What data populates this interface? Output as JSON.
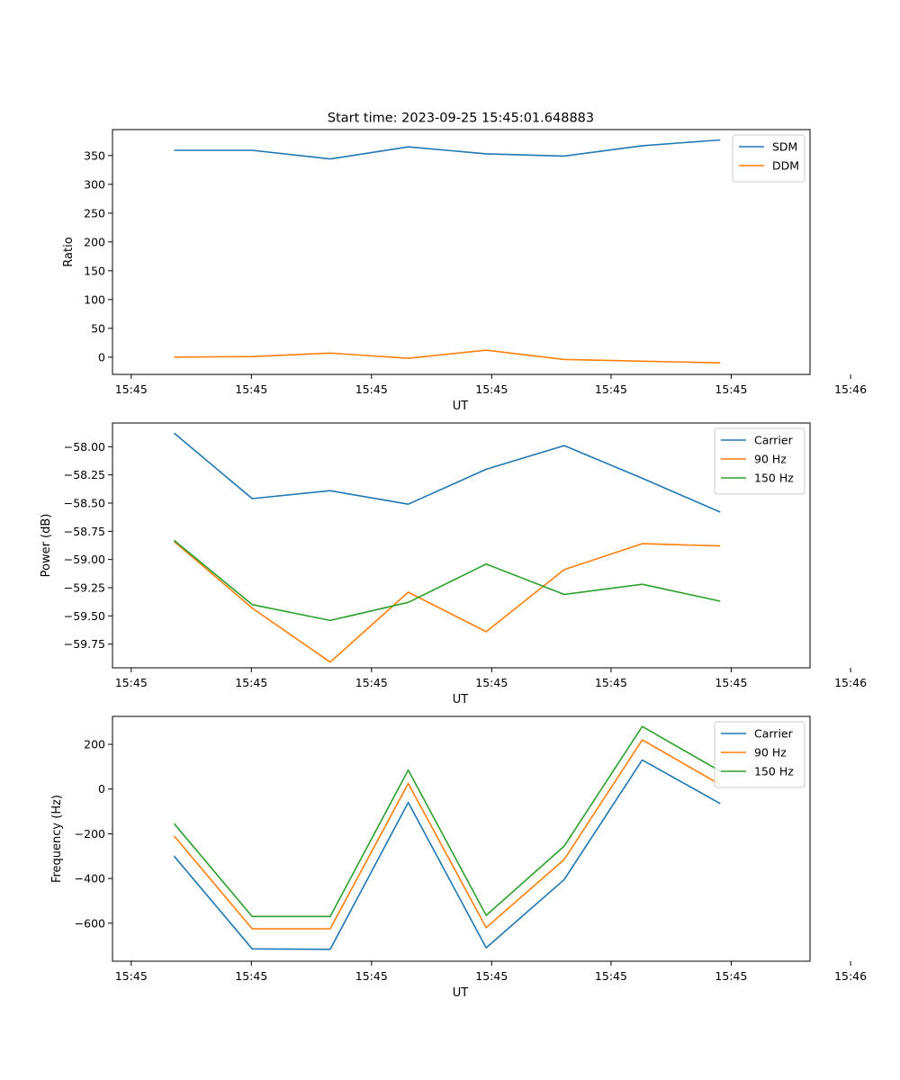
{
  "figure_title": "Start time: 2023-09-25 15:45:01.648883",
  "chart_data": [
    {
      "type": "line",
      "title": "Start time: 2023-09-25 15:45:01.648883",
      "xlabel": "UT",
      "ylabel": "Ratio",
      "x": [
        1,
        2,
        3,
        4,
        5,
        6,
        7,
        8
      ],
      "xlim": [
        0.21,
        9.15
      ],
      "xticks": [
        0.45,
        1.99,
        3.53,
        5.07,
        6.6,
        8.14,
        9.67
      ],
      "xtick_labels": [
        "15:45",
        "15:45",
        "15:45",
        "15:45",
        "15:45",
        "15:45",
        "15:46"
      ],
      "ylim": [
        -30,
        395
      ],
      "yticks": [
        0,
        50,
        100,
        150,
        200,
        250,
        300,
        350
      ],
      "legend": "top-right",
      "series": [
        {
          "name": "SDM",
          "color": "#1f77b4",
          "values": [
            359,
            359,
            344,
            365,
            353,
            349,
            367,
            377
          ]
        },
        {
          "name": "DDM",
          "color": "#ff7f0e",
          "values": [
            0,
            1,
            7,
            -2,
            12,
            -4,
            -7,
            -10
          ]
        }
      ]
    },
    {
      "type": "line",
      "title": "",
      "xlabel": "UT",
      "ylabel": "Power (dB)",
      "x": [
        1,
        2,
        3,
        4,
        5,
        6,
        7,
        8
      ],
      "xlim": [
        0.21,
        9.15
      ],
      "xticks": [
        0.45,
        1.99,
        3.53,
        5.07,
        6.6,
        8.14,
        9.67
      ],
      "xtick_labels": [
        "15:45",
        "15:45",
        "15:45",
        "15:45",
        "15:45",
        "15:45",
        "15:46"
      ],
      "ylim": [
        -59.96,
        -57.79
      ],
      "yticks": [
        -58.0,
        -58.25,
        -58.5,
        -58.75,
        -59.0,
        -59.25,
        -59.5,
        -59.75
      ],
      "ytick_labels": [
        "−58.00",
        "−58.25",
        "−58.50",
        "−58.75",
        "−59.00",
        "−59.25",
        "−59.50",
        "−59.75"
      ],
      "legend": "top-right",
      "series": [
        {
          "name": "Carrier",
          "color": "#1f77b4",
          "values": [
            -57.88,
            -58.46,
            -58.39,
            -58.51,
            -58.2,
            -57.99,
            -58.28,
            -58.58
          ]
        },
        {
          "name": "90 Hz",
          "color": "#ff7f0e",
          "values": [
            -58.84,
            -59.43,
            -59.91,
            -59.29,
            -59.64,
            -59.09,
            -58.86,
            -58.88
          ]
        },
        {
          "name": "150 Hz",
          "color": "#2ca02c",
          "values": [
            -58.83,
            -59.4,
            -59.54,
            -59.38,
            -59.04,
            -59.31,
            -59.22,
            -59.37
          ]
        }
      ]
    },
    {
      "type": "line",
      "title": "",
      "xlabel": "UT",
      "ylabel": "Frequency (Hz)",
      "x": [
        1,
        2,
        3,
        4,
        5,
        6,
        7,
        8
      ],
      "xlim": [
        0.21,
        9.15
      ],
      "xticks": [
        0.45,
        1.99,
        3.53,
        5.07,
        6.6,
        8.14,
        9.67
      ],
      "xtick_labels": [
        "15:45",
        "15:45",
        "15:45",
        "15:45",
        "15:45",
        "15:45",
        "15:46"
      ],
      "ylim": [
        -770,
        325
      ],
      "yticks": [
        200,
        0,
        -200,
        -400,
        -600
      ],
      "ytick_labels": [
        "200",
        "0",
        "−200",
        "−400",
        "−600"
      ],
      "legend": "top-right",
      "series": [
        {
          "name": "Carrier",
          "color": "#1f77b4",
          "values": [
            -300,
            -715,
            -717,
            -60,
            -710,
            -405,
            130,
            -65
          ]
        },
        {
          "name": "90 Hz",
          "color": "#ff7f0e",
          "values": [
            -210,
            -625,
            -625,
            25,
            -620,
            -315,
            220,
            20
          ]
        },
        {
          "name": "150 Hz",
          "color": "#2ca02c",
          "values": [
            -155,
            -570,
            -570,
            85,
            -565,
            -255,
            280,
            80
          ]
        }
      ]
    }
  ]
}
